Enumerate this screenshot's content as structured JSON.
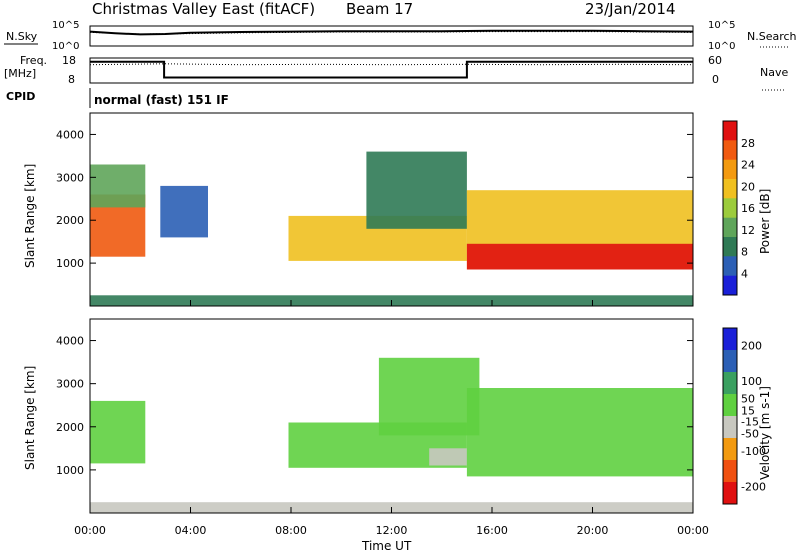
{
  "header": {
    "station": "Christmas Valley East (fitACF)",
    "beam": "Beam 17",
    "date": "23/Jan/2014"
  },
  "panel_labels": {
    "nsky": "N.Sky",
    "nsearch": "N.Search",
    "freq": "Freq.",
    "freq_unit": "[MHz]",
    "nave": "Nave",
    "cpid": "CPID",
    "mode": "normal (fast) 151 IF"
  },
  "noise_axis": {
    "top": "10^5",
    "bottom": "10^0"
  },
  "freq_axis": {
    "left_top": "18",
    "left_bottom": "8",
    "right_top": "60",
    "right_bottom": "0"
  },
  "chart_data": [
    {
      "type": "line",
      "name": "noise",
      "series": [
        {
          "name": "N.Sky",
          "x": [
            0,
            1,
            2,
            3,
            4,
            6,
            8,
            10,
            12,
            14,
            16,
            18,
            20,
            22,
            24
          ],
          "values": [
            3.6,
            3.2,
            2.9,
            3.0,
            3.3,
            3.5,
            3.6,
            3.7,
            3.7,
            3.7,
            3.8,
            3.8,
            3.8,
            3.7,
            3.6
          ]
        },
        {
          "name": "N.Search",
          "x": [
            0,
            2,
            4,
            6,
            8,
            10,
            12,
            14,
            16,
            18,
            20,
            22,
            24
          ],
          "values": [
            3.4,
            3.0,
            3.1,
            3.3,
            3.4,
            3.5,
            3.5,
            3.5,
            3.6,
            3.6,
            3.6,
            3.5,
            3.4
          ]
        }
      ],
      "ylim": [
        0,
        5
      ],
      "xlim": [
        0,
        24
      ]
    },
    {
      "type": "line",
      "name": "frequency",
      "series": [
        {
          "name": "Freq.",
          "x": [
            0,
            2.95,
            2.95,
            15.0,
            15.0,
            24
          ],
          "values": [
            16.5,
            16.5,
            10.2,
            10.2,
            16.5,
            16.5
          ]
        },
        {
          "name": "Nave",
          "x": [
            0,
            3,
            6,
            9,
            12,
            15,
            18,
            21,
            24
          ],
          "values": [
            44,
            46,
            44,
            45,
            44,
            45,
            44,
            45,
            44
          ]
        }
      ],
      "ylim": [
        8,
        18
      ],
      "xlim": [
        0,
        24
      ]
    },
    {
      "type": "heatmap",
      "name": "power",
      "ylabel": "Slant Range [km]",
      "colorbar_label": "Power [dB]",
      "colorbar_ticks": [
        4,
        8,
        12,
        16,
        20,
        24,
        28
      ],
      "colorbar_range": [
        0,
        32
      ],
      "xlim": [
        0,
        24
      ],
      "ylim": [
        0,
        4500
      ],
      "yticks": [
        1000,
        2000,
        3000,
        4000
      ],
      "regions": [
        {
          "t0": 0.0,
          "t1": 2.2,
          "r0": 1150,
          "r1": 2600,
          "level": 26
        },
        {
          "t0": 0.0,
          "t1": 2.2,
          "r0": 2300,
          "r1": 3300,
          "level": 12
        },
        {
          "t0": 2.8,
          "t1": 4.7,
          "r0": 1600,
          "r1": 2800,
          "level": 7
        },
        {
          "t0": 7.9,
          "t1": 15.0,
          "r0": 1050,
          "r1": 2100,
          "level": 20
        },
        {
          "t0": 11.0,
          "t1": 15.0,
          "r0": 1800,
          "r1": 3600,
          "level": 9
        },
        {
          "t0": 15.0,
          "t1": 24.0,
          "r0": 850,
          "r1": 2700,
          "level": 20
        },
        {
          "t0": 15.0,
          "t1": 24.0,
          "r0": 850,
          "r1": 1450,
          "level": 30
        },
        {
          "t0": 0.0,
          "t1": 24.0,
          "r0": 0,
          "r1": 250,
          "level": 8
        }
      ]
    },
    {
      "type": "heatmap",
      "name": "velocity",
      "ylabel": "Slant Range [km]",
      "xlabel": "Time UT",
      "colorbar_label": "Velocity [m s-1]",
      "colorbar_ticks": [
        200,
        100,
        50,
        15,
        -15,
        -50,
        -100,
        -200
      ],
      "colorbar_range": [
        -250,
        250
      ],
      "xlim": [
        0,
        24
      ],
      "xticks": [
        "00:00",
        "04:00",
        "08:00",
        "12:00",
        "16:00",
        "20:00",
        "00:00"
      ],
      "ylim": [
        0,
        4500
      ],
      "yticks": [
        1000,
        2000,
        3000,
        4000
      ],
      "regions": [
        {
          "t0": 0.0,
          "t1": 2.2,
          "r0": 1150,
          "r1": 2600,
          "level": 0
        },
        {
          "t0": 7.9,
          "t1": 15.0,
          "r0": 1050,
          "r1": 2100,
          "level": 40
        },
        {
          "t0": 13.5,
          "t1": 15.0,
          "r0": 1100,
          "r1": 1500,
          "level": -60
        },
        {
          "t0": 11.5,
          "t1": 15.5,
          "r0": 1800,
          "r1": 3600,
          "level": 40
        },
        {
          "t0": 15.0,
          "t1": 24.0,
          "r0": 850,
          "r1": 2900,
          "level": 0
        },
        {
          "t0": 0.0,
          "t1": 24.0,
          "r0": 0,
          "r1": 250,
          "level": -40
        }
      ]
    }
  ],
  "colors": {
    "power": [
      "#1a20d8",
      "#2b5fb5",
      "#2f7a55",
      "#5fa55a",
      "#9ccc3c",
      "#f0c020",
      "#f39a10",
      "#f05a10",
      "#e01010"
    ],
    "velocity": [
      "#e01010",
      "#f05010",
      "#f39a10",
      "#c8c8c0",
      "#5fd040",
      "#3aa060",
      "#2b5fb5",
      "#1a20d8"
    ]
  }
}
